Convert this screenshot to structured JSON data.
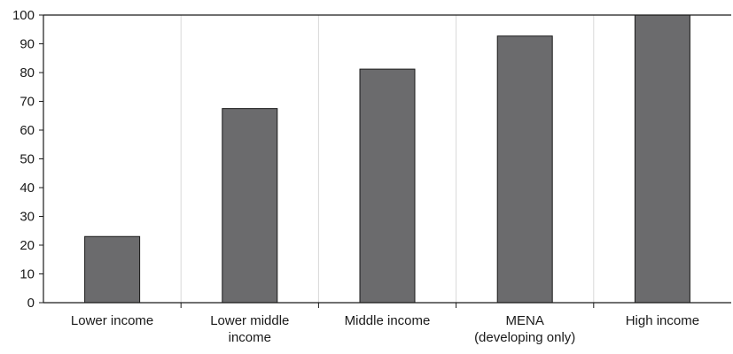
{
  "chart_data": {
    "type": "bar",
    "title": "",
    "xlabel": "",
    "ylabel": "",
    "categories": [
      [
        "Lower income"
      ],
      [
        "Lower middle",
        "income"
      ],
      [
        "Middle income"
      ],
      [
        "MENA",
        "(developing only)"
      ],
      [
        "High income"
      ]
    ],
    "values": [
      23,
      67.5,
      81.2,
      92.7,
      100
    ],
    "ylim": [
      0,
      100
    ],
    "yticks": [
      0,
      10,
      20,
      30,
      40,
      50,
      60,
      70,
      80,
      90,
      100
    ],
    "grid": "vertical separators between categories",
    "bar_color": "#6b6b6d"
  }
}
